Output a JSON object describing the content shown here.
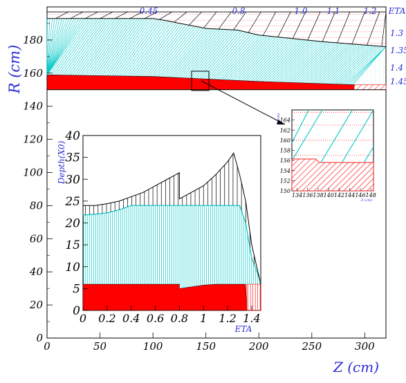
{
  "chart_data": [
    {
      "type": "area",
      "xlabel": "Z (cm)",
      "ylabel": "R (cm)",
      "xlim": [
        0,
        320
      ],
      "ylim": [
        0,
        200
      ],
      "x_ticks": [
        0,
        50,
        100,
        150,
        200,
        250,
        300
      ],
      "y_ticks": [
        0,
        20,
        40,
        60,
        80,
        100,
        120,
        140,
        160,
        180
      ],
      "eta_label": "ETA",
      "eta_top": [
        "0.45",
        "0.8",
        "1.0",
        "1.1",
        "1.2"
      ],
      "eta_right": [
        "1.3",
        "1.35",
        "1.4",
        "1.45"
      ],
      "layers": [
        {
          "name": "presampler",
          "color": "#ff0000",
          "boundary": [
            [
              0,
              159
            ],
            [
              100,
              158
            ],
            [
              200,
              155
            ],
            [
              290,
              153
            ]
          ]
        },
        {
          "name": "em-calorimeter",
          "color": "#00cccc",
          "boundary": [
            [
              0,
              193
            ],
            [
              100,
              193
            ],
            [
              110,
              192
            ],
            [
              150,
              187
            ],
            [
              180,
              186
            ],
            [
              200,
              183
            ],
            [
              260,
              179
            ],
            [
              300,
              177
            ],
            [
              320,
              176
            ]
          ]
        },
        {
          "name": "outer-hatch",
          "color": "#000000",
          "top": 197
        }
      ]
    },
    {
      "type": "area",
      "xlabel": "ETA",
      "ylabel": "Depth(X0)",
      "xlim": [
        0,
        1.475
      ],
      "ylim": [
        0,
        40
      ],
      "x_tick_labels": [
        "0",
        "0.2",
        "0.4",
        "0.6",
        "0.8",
        "1",
        "1.2",
        "1.4"
      ],
      "x_tick_values": [
        0,
        0.2,
        0.4,
        0.6,
        0.8,
        1.0,
        1.2,
        1.4
      ],
      "y_ticks": [
        0,
        5,
        10,
        15,
        20,
        25,
        30,
        35,
        40
      ],
      "series": [
        {
          "color": "#000000",
          "x": [
            0,
            0.1,
            0.2,
            0.3,
            0.4,
            0.5,
            0.6,
            0.7,
            0.8,
            0.8,
            0.9,
            1.0,
            1.1,
            1.2,
            1.25,
            1.3,
            1.35,
            1.4,
            1.475
          ],
          "y": [
            24,
            24,
            24.4,
            25,
            26,
            27,
            28.5,
            30,
            31.5,
            25.5,
            27,
            28.5,
            31,
            34,
            36,
            31,
            25,
            15,
            6
          ]
        },
        {
          "color": "#00cccc",
          "x": [
            0,
            0.1,
            0.2,
            0.3,
            0.4,
            0.5,
            0.6,
            0.7,
            0.8,
            0.9,
            1.0,
            1.1,
            1.2,
            1.3,
            1.35,
            1.4,
            1.475
          ],
          "y": [
            21.8,
            22,
            22.3,
            23,
            24,
            24,
            24,
            24,
            24,
            24,
            24,
            24,
            24,
            24,
            20,
            12,
            6.5
          ]
        },
        {
          "color": "#ff0000",
          "x": [
            0,
            0.1,
            0.2,
            0.3,
            0.4,
            0.5,
            0.6,
            0.7,
            0.8,
            0.8,
            0.9,
            1.0,
            1.1,
            1.2,
            1.3,
            1.35,
            1.36
          ],
          "y": [
            6,
            6,
            6,
            6,
            6,
            6,
            6,
            6,
            6,
            5,
            5.4,
            5.8,
            6,
            6,
            6,
            6,
            0
          ]
        }
      ]
    },
    {
      "type": "area",
      "xlabel": "Z (cm)",
      "ylabel": "R (cm)",
      "xlim": [
        133,
        148.5
      ],
      "ylim": [
        150,
        166
      ],
      "x_ticks": [
        134,
        136,
        138,
        140,
        142,
        144,
        146,
        148
      ],
      "y_ticks": [
        150,
        152,
        154,
        156,
        158,
        160,
        162,
        164
      ],
      "layers": [
        {
          "name": "presampler",
          "color": "#ff0000",
          "boundary": [
            [
              133,
              156.3
            ],
            [
              137.5,
              156.3
            ],
            [
              138.2,
              155.6
            ],
            [
              148.5,
              155.6
            ]
          ]
        },
        {
          "name": "em-calorimeter",
          "color": "#00cccc"
        }
      ]
    }
  ]
}
